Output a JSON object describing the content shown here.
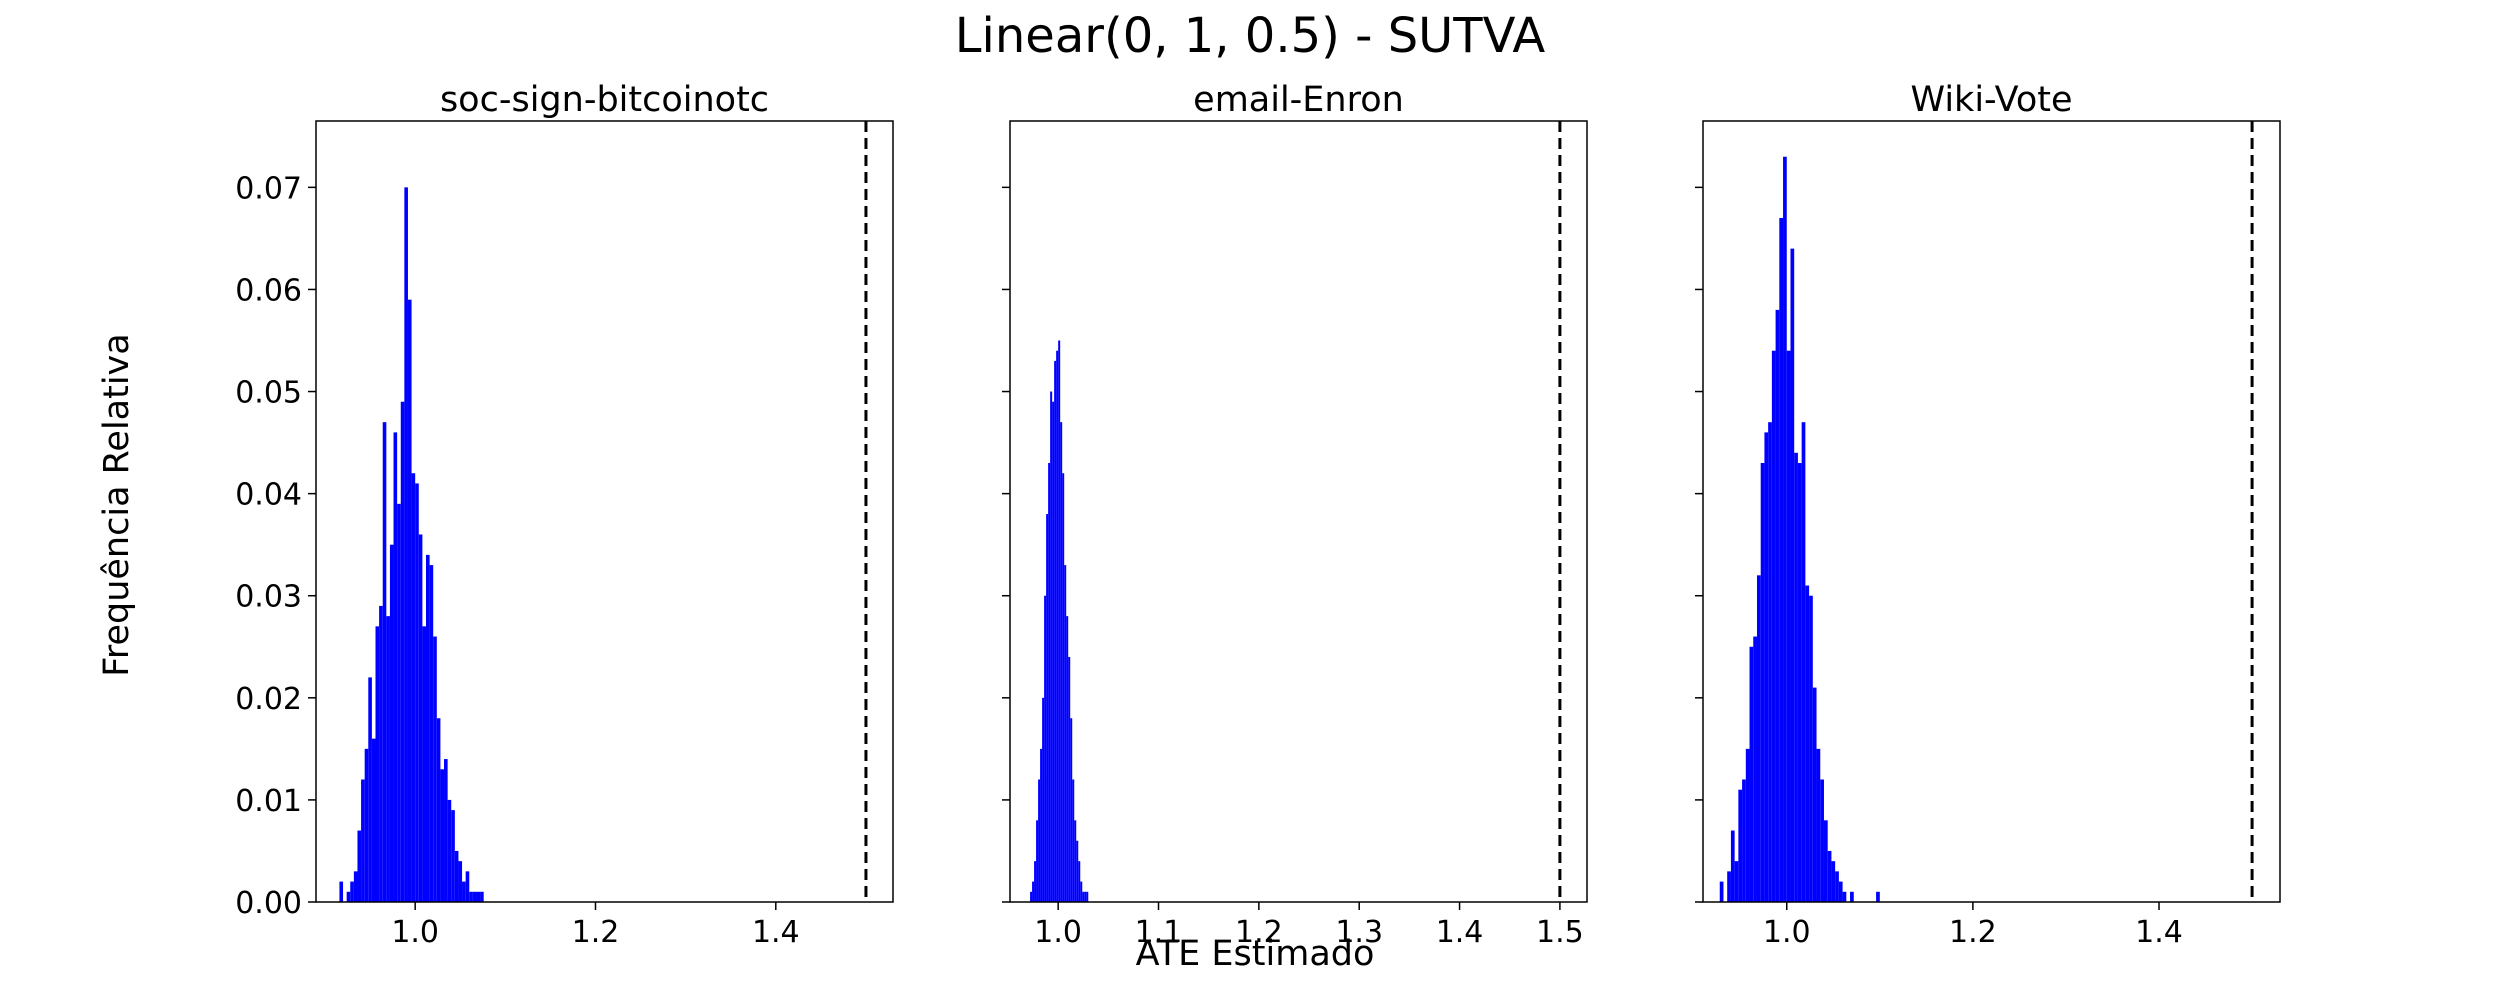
{
  "figure": {
    "title": "Linear(0, 1, 0.5) - SUTVA",
    "xlabel": "ATE Estimado",
    "ylabel": "Frequência Relativa"
  },
  "colors": {
    "bars": "#0000ff",
    "reference_line": "#000000"
  },
  "chart_data": [
    {
      "type": "bar",
      "title": "soc-sign-bitcoinotc",
      "xlim": [
        0.89,
        1.53
      ],
      "ylim": [
        0,
        0.0765
      ],
      "xticks": [
        1.0,
        1.2,
        1.4
      ],
      "xtick_labels": [
        "1.0",
        "1.2",
        "1.4"
      ],
      "yticks": [
        0.0,
        0.01,
        0.02,
        0.03,
        0.04,
        0.05,
        0.06,
        0.07
      ],
      "ytick_labels": [
        "0.00",
        "0.01",
        "0.02",
        "0.03",
        "0.04",
        "0.05",
        "0.06",
        "0.07"
      ],
      "show_ytick_labels": true,
      "reference_x": 1.5,
      "bin_width": 0.004,
      "x": [
        0.918,
        0.926,
        0.93,
        0.934,
        0.938,
        0.942,
        0.946,
        0.95,
        0.954,
        0.958,
        0.962,
        0.966,
        0.97,
        0.974,
        0.978,
        0.982,
        0.986,
        0.99,
        0.994,
        0.998,
        1.002,
        1.006,
        1.01,
        1.014,
        1.018,
        1.022,
        1.026,
        1.03,
        1.034,
        1.038,
        1.042,
        1.046,
        1.05,
        1.054,
        1.058,
        1.062,
        1.066,
        1.07,
        1.074
      ],
      "y": [
        0.002,
        0.001,
        0.002,
        0.003,
        0.007,
        0.012,
        0.015,
        0.022,
        0.016,
        0.027,
        0.029,
        0.047,
        0.028,
        0.035,
        0.046,
        0.039,
        0.049,
        0.07,
        0.059,
        0.042,
        0.041,
        0.036,
        0.027,
        0.034,
        0.033,
        0.026,
        0.018,
        0.013,
        0.014,
        0.01,
        0.009,
        0.005,
        0.004,
        0.002,
        0.003,
        0.001,
        0.001,
        0.001,
        0.001
      ]
    },
    {
      "type": "bar",
      "title": "email-Enron",
      "xlim": [
        0.952,
        1.527
      ],
      "ylim": [
        0,
        0.0765
      ],
      "xticks": [
        1.0,
        1.1,
        1.2,
        1.3,
        1.4,
        1.5
      ],
      "xtick_labels": [
        "1.0",
        "1.1",
        "1.2",
        "1.3",
        "1.4",
        "1.5"
      ],
      "yticks": [
        0.0,
        0.01,
        0.02,
        0.03,
        0.04,
        0.05,
        0.06,
        0.07
      ],
      "ytick_labels": [],
      "show_ytick_labels": false,
      "reference_x": 1.5,
      "bin_width": 0.002,
      "x": [
        0.973,
        0.975,
        0.977,
        0.979,
        0.981,
        0.983,
        0.985,
        0.987,
        0.989,
        0.991,
        0.993,
        0.995,
        0.997,
        0.999,
        1.001,
        1.003,
        1.005,
        1.007,
        1.009,
        1.011,
        1.013,
        1.015,
        1.017,
        1.019,
        1.021,
        1.023,
        1.025,
        1.027,
        1.029
      ],
      "y": [
        0.001,
        0.002,
        0.004,
        0.008,
        0.012,
        0.015,
        0.02,
        0.03,
        0.038,
        0.043,
        0.05,
        0.049,
        0.053,
        0.054,
        0.055,
        0.047,
        0.042,
        0.033,
        0.028,
        0.024,
        0.018,
        0.012,
        0.008,
        0.006,
        0.004,
        0.002,
        0.001,
        0.001,
        0.001
      ]
    },
    {
      "type": "bar",
      "title": "Wiki-Vote",
      "xlim": [
        0.91,
        1.53
      ],
      "ylim": [
        0,
        0.0765
      ],
      "xticks": [
        1.0,
        1.2,
        1.4
      ],
      "xtick_labels": [
        "1.0",
        "1.2",
        "1.4"
      ],
      "yticks": [
        0.0,
        0.01,
        0.02,
        0.03,
        0.04,
        0.05,
        0.06,
        0.07
      ],
      "ytick_labels": [],
      "show_ytick_labels": false,
      "reference_x": 1.5,
      "bin_width": 0.004,
      "x": [
        0.93,
        0.938,
        0.942,
        0.946,
        0.95,
        0.954,
        0.958,
        0.962,
        0.966,
        0.97,
        0.974,
        0.978,
        0.982,
        0.986,
        0.99,
        0.994,
        0.998,
        1.002,
        1.006,
        1.01,
        1.014,
        1.018,
        1.022,
        1.026,
        1.03,
        1.034,
        1.038,
        1.042,
        1.046,
        1.05,
        1.054,
        1.058,
        1.062,
        1.07,
        1.098
      ],
      "y": [
        0.002,
        0.003,
        0.007,
        0.004,
        0.011,
        0.012,
        0.015,
        0.025,
        0.026,
        0.032,
        0.043,
        0.046,
        0.047,
        0.054,
        0.058,
        0.067,
        0.073,
        0.054,
        0.064,
        0.044,
        0.043,
        0.047,
        0.031,
        0.03,
        0.021,
        0.015,
        0.012,
        0.008,
        0.005,
        0.004,
        0.003,
        0.002,
        0.001,
        0.001,
        0.001
      ]
    }
  ]
}
